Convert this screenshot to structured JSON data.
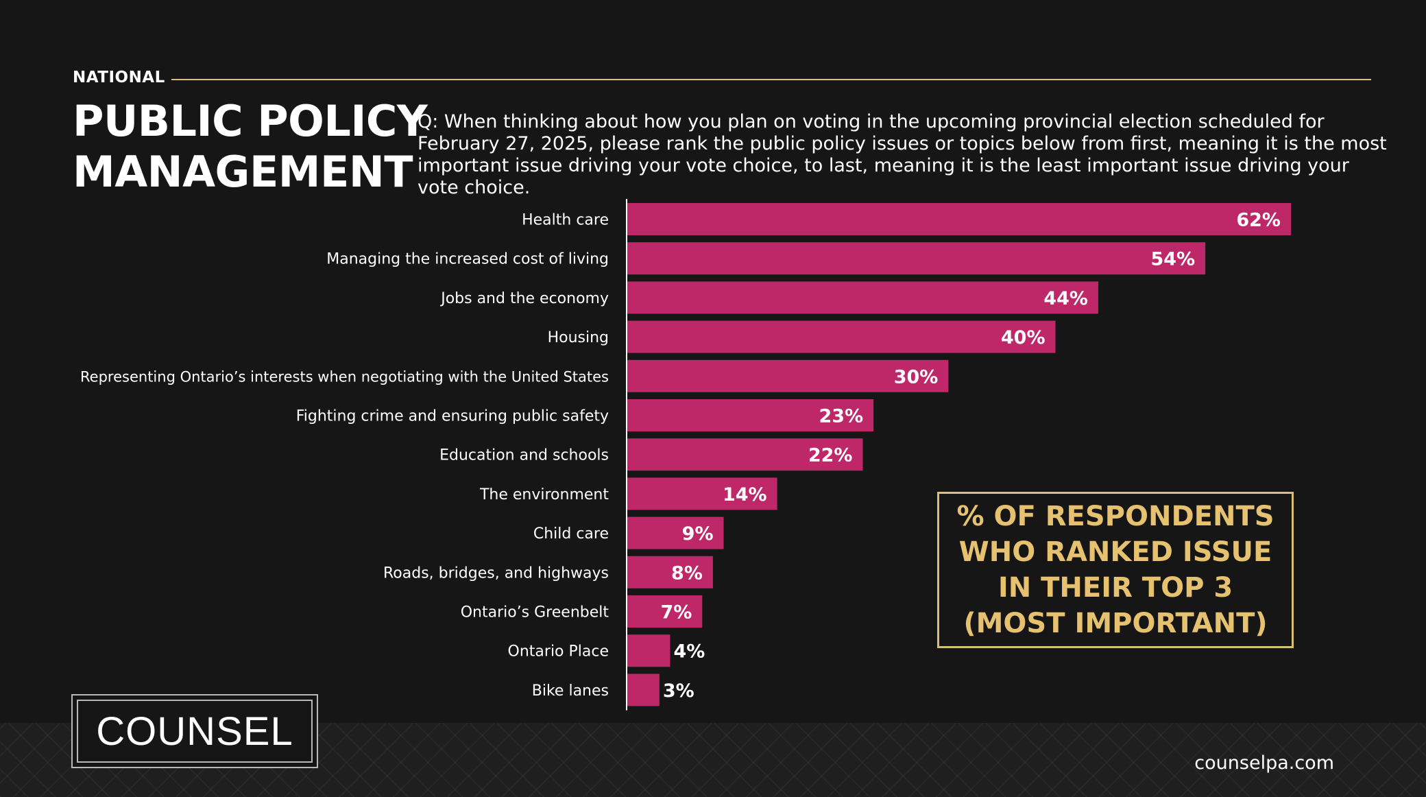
{
  "header": {
    "eyebrow": "NATIONAL",
    "title_line1": "PUBLIC POLICY",
    "title_line2": "MANAGEMENT",
    "question": "Q: When thinking about how you plan on voting in the upcoming provincial election scheduled for February 27, 2025, please rank the public policy issues or topics below from first, meaning it is the most important issue driving your vote choice, to last, meaning it is the least important issue driving your vote choice."
  },
  "callout": {
    "text": "% OF RESPONDENTS WHO RANKED ISSUE IN THEIR TOP 3 (MOST IMPORTANT)"
  },
  "footer": {
    "logo_text": "COUNSEL",
    "website": "counselpa.com"
  },
  "colors": {
    "bar": "#bf2868",
    "accent_gold": "#d8bf72",
    "background": "#161616",
    "text": "#ffffff"
  },
  "chart_data": {
    "type": "bar",
    "orientation": "horizontal",
    "categories": [
      "Health care",
      "Managing the increased cost of living",
      "Jobs and the economy",
      "Housing",
      "Representing Ontario’s interests when negotiating with the United States",
      "Fighting crime and ensuring public safety",
      "Education and schools",
      "The environment",
      "Child care",
      "Roads, bridges, and highways",
      "Ontario’s Greenbelt",
      "Ontario Place",
      "Bike lanes"
    ],
    "values": [
      62,
      54,
      44,
      40,
      30,
      23,
      22,
      14,
      9,
      8,
      7,
      4,
      3
    ],
    "data_labels": [
      "62%",
      "54%",
      "44%",
      "40%",
      "30%",
      "23%",
      "22%",
      "14%",
      "9%",
      "8%",
      "7%",
      "4%",
      "3%"
    ],
    "xlim": [
      0,
      62
    ],
    "grid": false,
    "title": "",
    "xlabel": "",
    "ylabel": ""
  }
}
